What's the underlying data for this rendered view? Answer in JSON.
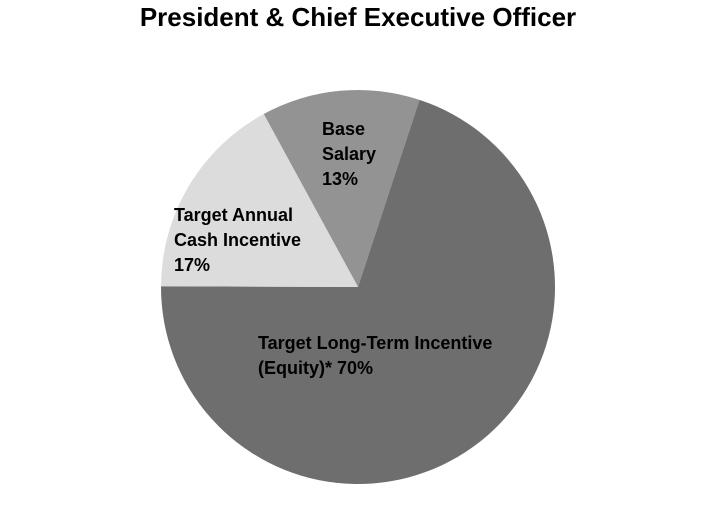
{
  "chart_data": {
    "type": "pie",
    "title": "President & Chief Executive Officer",
    "categories": [
      "Base Salary",
      "Target Long-Term Incentive (Equity)*",
      "Target Annual Cash Incentive"
    ],
    "values": [
      13,
      70,
      17
    ],
    "value_labels": [
      "13%",
      "70%",
      "17%"
    ],
    "colors": [
      "#939393",
      "#6e6e6e",
      "#dcdcdc"
    ]
  }
}
